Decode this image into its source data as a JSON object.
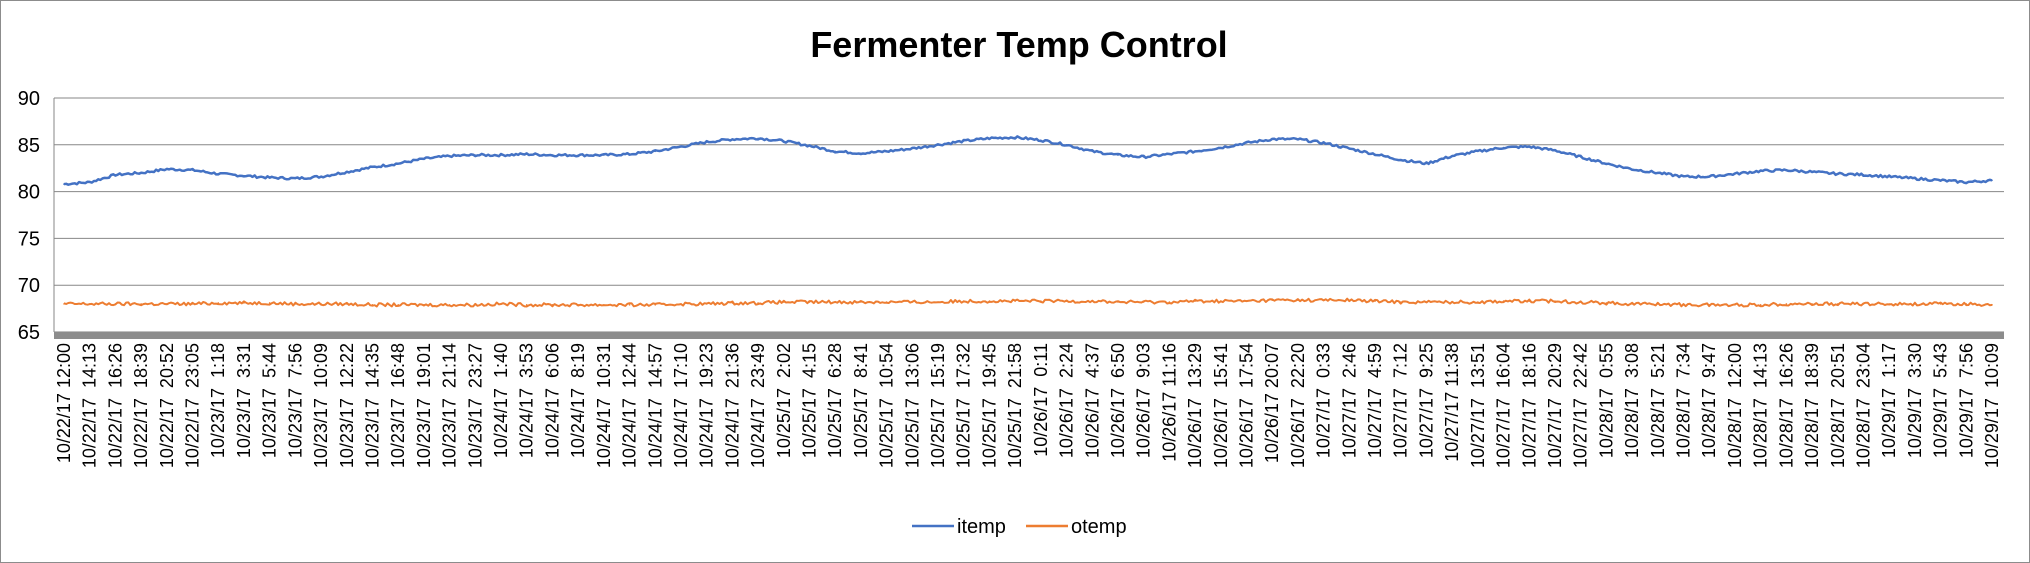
{
  "chart_data": {
    "type": "line",
    "title": "Fermenter Temp Control",
    "xlabel": "",
    "ylabel": "",
    "ylim": [
      65,
      90
    ],
    "yticks": [
      65,
      70,
      75,
      80,
      85,
      90
    ],
    "grid": true,
    "legend_position": "bottom",
    "x_labels": [
      "10/22/17 12:00",
      "10/22/17  14:13",
      "10/22/17  16:26",
      "10/22/17  18:39",
      "10/22/17  20:52",
      "10/22/17  23:05",
      "10/23/17  1:18",
      "10/23/17  3:31",
      "10/23/17  5:44",
      "10/23/17  7:56",
      "10/23/17  10:09",
      "10/23/17  12:22",
      "10/23/17  14:35",
      "10/23/17  16:48",
      "10/23/17  19:01",
      "10/23/17  21:14",
      "10/23/17  23:27",
      "10/24/17  1:40",
      "10/24/17  3:53",
      "10/24/17  6:06",
      "10/24/17  8:19",
      "10/24/17  10:31",
      "10/24/17  12:44",
      "10/24/17  14:57",
      "10/24/17  17:10",
      "10/24/17  19:23",
      "10/24/17  21:36",
      "10/24/17  23:49",
      "10/25/17  2:02",
      "10/25/17  4:15",
      "10/25/17  6:28",
      "10/25/17  8:41",
      "10/25/17  10:54",
      "10/25/17  13:06",
      "10/25/17  15:19",
      "10/25/17  17:32",
      "10/25/17  19:45",
      "10/25/17  21:58",
      "10/26/17  0:11",
      "10/26/17  2:24",
      "10/26/17  4:37",
      "10/26/17  6:50",
      "10/26/17  9:03",
      "10/26/17 11:16",
      "10/26/17  13:29",
      "10/26/17  15:41",
      "10/26/17  17:54",
      "10/26/17 20:07",
      "10/26/17  22:20",
      "10/27/17  0:33",
      "10/27/17  2:46",
      "10/27/17  4:59",
      "10/27/17  7:12",
      "10/27/17  9:25",
      "10/27/17 11:38",
      "10/27/17  13:51",
      "10/27/17  16:04",
      "10/27/17  18:16",
      "10/27/17  20:29",
      "10/27/17  22:42",
      "10/28/17  0:55",
      "10/28/17  3:08",
      "10/28/17  5:21",
      "10/28/17  7:34",
      "10/28/17  9:47",
      "10/28/17  12:00",
      "10/28/17  14:13",
      "10/28/17  16:26",
      "10/28/17  18:39",
      "10/28/17  20:51",
      "10/28/17  23:04",
      "10/29/17  1:17",
      "10/29/17  3:30",
      "10/29/17  5:43",
      "10/29/17  7:56",
      "10/29/17  10:09"
    ],
    "series": [
      {
        "name": "itemp",
        "color": "#4472C4",
        "values": [
          80.8,
          81.0,
          81.8,
          82.0,
          82.4,
          82.3,
          81.9,
          81.7,
          81.5,
          81.4,
          81.6,
          82.1,
          82.6,
          83.0,
          83.5,
          83.8,
          83.9,
          83.9,
          84.0,
          83.9,
          83.9,
          83.9,
          84.0,
          84.3,
          84.8,
          85.3,
          85.6,
          85.7,
          85.4,
          84.9,
          84.3,
          84.1,
          84.3,
          84.6,
          85.0,
          85.4,
          85.7,
          85.8,
          85.5,
          85.0,
          84.3,
          83.9,
          83.7,
          84.0,
          84.3,
          84.7,
          85.2,
          85.6,
          85.6,
          85.2,
          84.6,
          84.0,
          83.4,
          83.0,
          83.8,
          84.3,
          84.7,
          84.8,
          84.4,
          83.7,
          83.0,
          82.4,
          82.0,
          81.6,
          81.6,
          81.9,
          82.2,
          82.3,
          82.1,
          81.9,
          81.8,
          81.6,
          81.4,
          81.2,
          81.0,
          81.2
        ]
      },
      {
        "name": "otemp",
        "color": "#ED7D31",
        "values": [
          68.0,
          68.0,
          68.0,
          68.0,
          68.0,
          68.0,
          68.1,
          68.1,
          68.1,
          68.0,
          68.0,
          68.0,
          67.9,
          67.9,
          67.9,
          67.9,
          67.9,
          68.0,
          67.9,
          67.9,
          67.9,
          67.9,
          67.9,
          67.9,
          68.0,
          68.0,
          68.1,
          68.1,
          68.2,
          68.2,
          68.2,
          68.2,
          68.2,
          68.2,
          68.2,
          68.3,
          68.3,
          68.3,
          68.3,
          68.3,
          68.3,
          68.2,
          68.2,
          68.2,
          68.3,
          68.3,
          68.3,
          68.4,
          68.4,
          68.4,
          68.4,
          68.3,
          68.2,
          68.2,
          68.2,
          68.2,
          68.3,
          68.3,
          68.3,
          68.2,
          68.1,
          68.0,
          68.0,
          67.9,
          67.9,
          67.9,
          67.9,
          68.0,
          68.0,
          68.0,
          68.0,
          68.0,
          68.0,
          68.0,
          68.0,
          67.9
        ]
      }
    ]
  }
}
